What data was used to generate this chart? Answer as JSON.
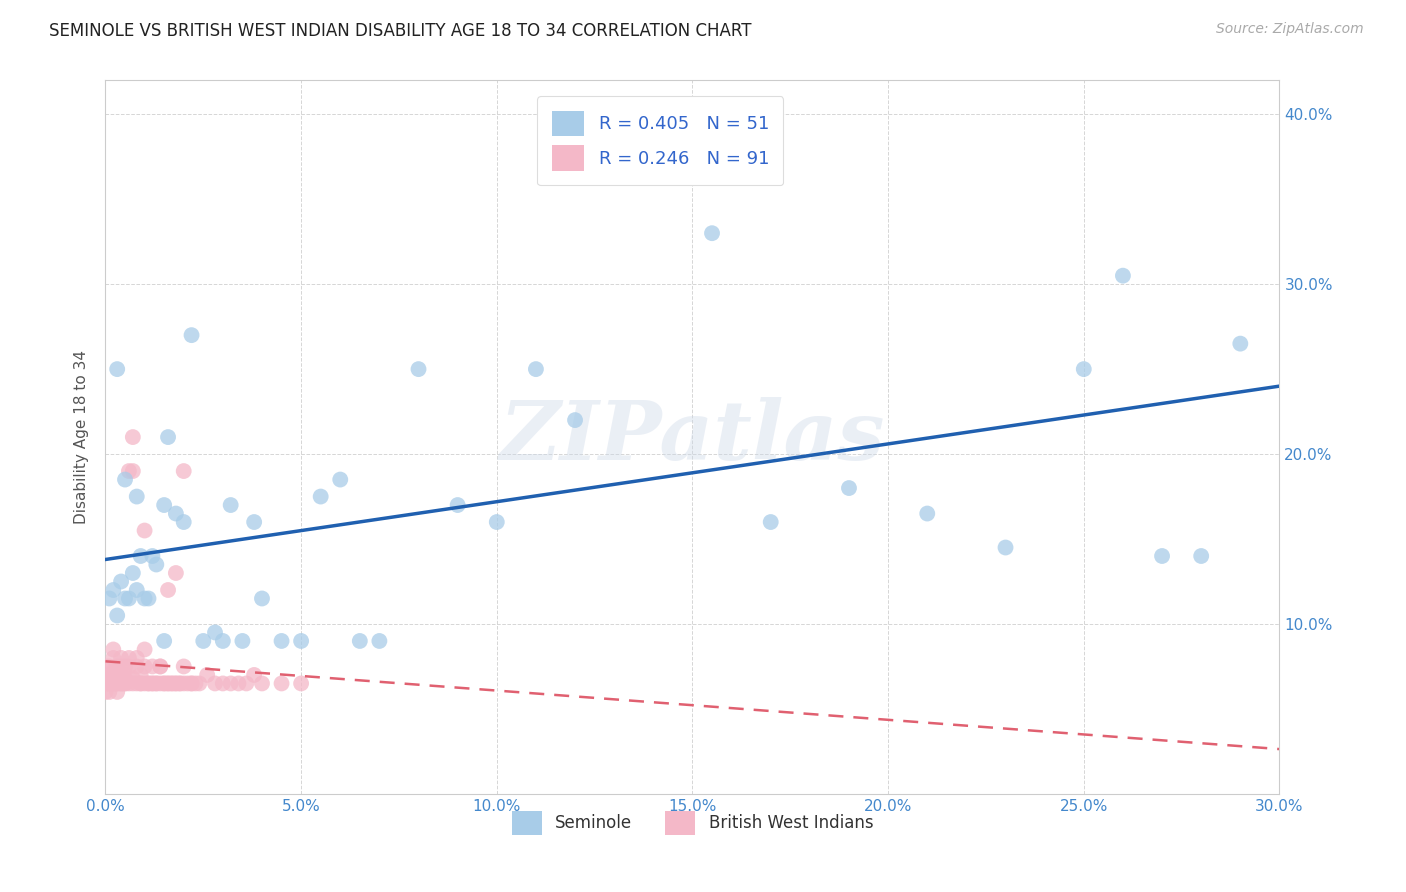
{
  "title": "SEMINOLE VS BRITISH WEST INDIAN DISABILITY AGE 18 TO 34 CORRELATION CHART",
  "source": "Source: ZipAtlas.com",
  "ylabel": "Disability Age 18 to 34",
  "xlim": [
    0.0,
    0.3
  ],
  "ylim": [
    0.0,
    0.42
  ],
  "legend_r1": "R = 0.405",
  "legend_n1": "N = 51",
  "legend_r2": "R = 0.246",
  "legend_n2": "N = 91",
  "blue_color": "#a8cce8",
  "pink_color": "#f4b8c8",
  "blue_line_color": "#2060b0",
  "pink_line_color": "#e06070",
  "watermark_text": "ZIPatlas",
  "seminole_x": [
    0.001,
    0.002,
    0.003,
    0.004,
    0.005,
    0.006,
    0.007,
    0.008,
    0.009,
    0.01,
    0.011,
    0.012,
    0.013,
    0.015,
    0.016,
    0.018,
    0.02,
    0.022,
    0.025,
    0.028,
    0.03,
    0.032,
    0.035,
    0.038,
    0.04,
    0.045,
    0.05,
    0.055,
    0.06,
    0.065,
    0.07,
    0.08,
    0.09,
    0.1,
    0.11,
    0.12,
    0.14,
    0.155,
    0.17,
    0.19,
    0.21,
    0.23,
    0.25,
    0.26,
    0.27,
    0.28,
    0.29,
    0.003,
    0.005,
    0.008,
    0.015
  ],
  "seminole_y": [
    0.115,
    0.12,
    0.105,
    0.125,
    0.115,
    0.115,
    0.13,
    0.12,
    0.14,
    0.115,
    0.115,
    0.14,
    0.135,
    0.17,
    0.21,
    0.165,
    0.16,
    0.27,
    0.09,
    0.095,
    0.09,
    0.17,
    0.09,
    0.16,
    0.115,
    0.09,
    0.09,
    0.175,
    0.185,
    0.09,
    0.09,
    0.25,
    0.17,
    0.16,
    0.25,
    0.22,
    0.38,
    0.33,
    0.16,
    0.18,
    0.165,
    0.145,
    0.25,
    0.305,
    0.14,
    0.14,
    0.265,
    0.25,
    0.185,
    0.175,
    0.09
  ],
  "bwi_x": [
    0.0,
    0.0,
    0.0,
    0.001,
    0.001,
    0.001,
    0.001,
    0.001,
    0.002,
    0.002,
    0.002,
    0.002,
    0.002,
    0.002,
    0.003,
    0.003,
    0.003,
    0.003,
    0.003,
    0.004,
    0.004,
    0.004,
    0.004,
    0.005,
    0.005,
    0.005,
    0.005,
    0.006,
    0.006,
    0.006,
    0.007,
    0.007,
    0.007,
    0.008,
    0.008,
    0.009,
    0.009,
    0.01,
    0.01,
    0.011,
    0.012,
    0.013,
    0.014,
    0.015,
    0.016,
    0.017,
    0.018,
    0.019,
    0.02,
    0.022,
    0.024,
    0.026,
    0.028,
    0.03,
    0.032,
    0.034,
    0.036,
    0.038,
    0.04,
    0.045,
    0.05,
    0.01,
    0.012,
    0.014,
    0.016,
    0.018,
    0.02,
    0.0,
    0.001,
    0.002,
    0.003,
    0.004,
    0.005,
    0.006,
    0.007,
    0.008,
    0.009,
    0.01,
    0.011,
    0.012,
    0.013,
    0.014,
    0.015,
    0.016,
    0.017,
    0.018,
    0.019,
    0.02,
    0.021,
    0.022,
    0.023
  ],
  "bwi_y": [
    0.075,
    0.068,
    0.06,
    0.07,
    0.065,
    0.075,
    0.068,
    0.06,
    0.072,
    0.08,
    0.065,
    0.07,
    0.085,
    0.068,
    0.07,
    0.075,
    0.065,
    0.068,
    0.06,
    0.075,
    0.08,
    0.065,
    0.068,
    0.07,
    0.065,
    0.075,
    0.068,
    0.075,
    0.08,
    0.19,
    0.19,
    0.21,
    0.068,
    0.075,
    0.08,
    0.065,
    0.07,
    0.075,
    0.085,
    0.065,
    0.065,
    0.065,
    0.075,
    0.065,
    0.065,
    0.065,
    0.065,
    0.065,
    0.075,
    0.065,
    0.065,
    0.07,
    0.065,
    0.065,
    0.065,
    0.065,
    0.065,
    0.07,
    0.065,
    0.065,
    0.065,
    0.155,
    0.075,
    0.075,
    0.12,
    0.13,
    0.19,
    0.065,
    0.065,
    0.065,
    0.065,
    0.065,
    0.065,
    0.065,
    0.065,
    0.065,
    0.065,
    0.065,
    0.065,
    0.065,
    0.065,
    0.065,
    0.065,
    0.065,
    0.065,
    0.065,
    0.065,
    0.065,
    0.065,
    0.065,
    0.065
  ]
}
